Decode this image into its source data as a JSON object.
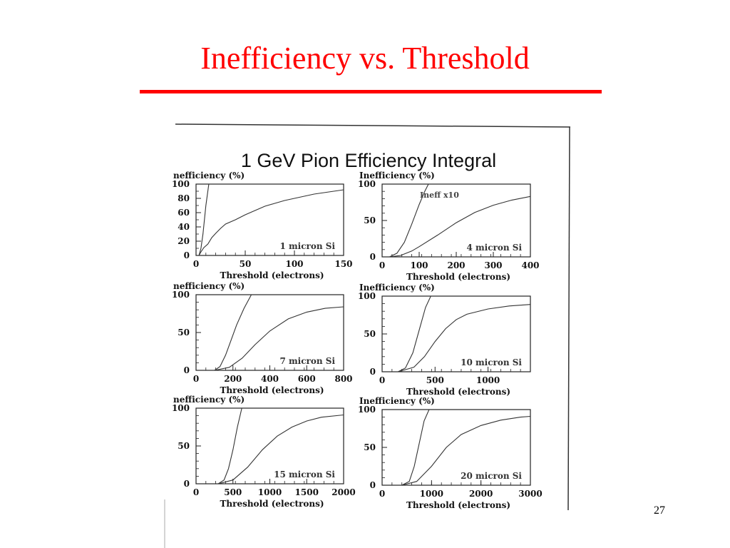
{
  "slide": {
    "title": "Inefficiency vs. Threshold",
    "page_number": "27",
    "accent_color": "#ff0000"
  },
  "figure": {
    "title": "1 GeV Pion Efficiency Integral"
  },
  "chart_data": [
    {
      "type": "line",
      "title": "",
      "ylabel": "nefficiency (%)",
      "xlabel": "Threshold (electrons)",
      "annotation": "1 micron Si",
      "xlim": [
        0,
        150
      ],
      "ylim": [
        0,
        100
      ],
      "xticks": [
        0,
        50,
        100,
        150
      ],
      "yticks": [
        0,
        20,
        40,
        60,
        80,
        100
      ],
      "series": [
        {
          "x": [
            3,
            5,
            7,
            10,
            13
          ],
          "y": [
            0,
            10,
            30,
            70,
            100
          ]
        },
        {
          "x": [
            3,
            5,
            8,
            12,
            16,
            20,
            25,
            30,
            40,
            50,
            60,
            70,
            80,
            90,
            100,
            110,
            120,
            130,
            140,
            150
          ],
          "y": [
            0,
            5,
            11,
            16,
            25,
            31,
            38,
            44,
            50,
            57,
            63,
            69,
            73,
            77,
            80,
            83,
            86,
            88,
            90,
            92
          ]
        }
      ]
    },
    {
      "type": "line",
      "title": "",
      "ylabel": "Inefficiency (%)",
      "xlabel": "Threshold (electrons)",
      "annotation": "4 micron Si",
      "inset_label": "Ineff x10",
      "xlim": [
        0,
        400
      ],
      "ylim": [
        0,
        100
      ],
      "xticks": [
        0,
        100,
        200,
        300,
        400
      ],
      "yticks": [
        0,
        50,
        100
      ],
      "series": [
        {
          "x": [
            20,
            40,
            60,
            80,
            100,
            115,
            125
          ],
          "y": [
            0,
            5,
            20,
            45,
            72,
            90,
            100
          ]
        },
        {
          "x": [
            20,
            50,
            80,
            100,
            150,
            200,
            250,
            300,
            350,
            400
          ],
          "y": [
            0,
            2,
            8,
            14,
            30,
            47,
            61,
            71,
            78,
            83
          ]
        }
      ]
    },
    {
      "type": "line",
      "title": "",
      "ylabel": "nefficiency (%)",
      "xlabel": "Threshold (electrons)",
      "annotation": "7 micron Si",
      "xlim": [
        0,
        800
      ],
      "ylim": [
        0,
        100
      ],
      "xticks": [
        0,
        200,
        400,
        600,
        800
      ],
      "yticks": [
        0,
        50,
        100
      ],
      "series": [
        {
          "x": [
            100,
            130,
            160,
            190,
            220,
            260,
            300
          ],
          "y": [
            0,
            5,
            20,
            40,
            60,
            82,
            100
          ]
        },
        {
          "x": [
            100,
            180,
            250,
            320,
            400,
            500,
            600,
            700,
            800
          ],
          "y": [
            0,
            4,
            16,
            34,
            52,
            68,
            77,
            82,
            84
          ]
        }
      ]
    },
    {
      "type": "line",
      "title": "",
      "ylabel": "Inefficiency (%)",
      "xlabel": "Threshold (electrons)",
      "annotation": "10 micron Si",
      "xlim": [
        0,
        1400
      ],
      "ylim": [
        0,
        100
      ],
      "xticks": [
        0,
        500,
        1000
      ],
      "yticks": [
        0,
        50,
        100
      ],
      "series": [
        {
          "x": [
            150,
            220,
            290,
            350,
            410,
            460
          ],
          "y": [
            0,
            5,
            25,
            55,
            85,
            100
          ]
        },
        {
          "x": [
            150,
            300,
            400,
            500,
            600,
            700,
            800,
            1000,
            1200,
            1400
          ],
          "y": [
            0,
            6,
            20,
            40,
            57,
            69,
            76,
            83,
            87,
            89
          ]
        }
      ]
    },
    {
      "type": "line",
      "title": "",
      "ylabel": "nefficiency (%)",
      "xlabel": "Threshold (electrons)",
      "annotation": "15 micron Si",
      "xlim": [
        0,
        2000
      ],
      "ylim": [
        0,
        100
      ],
      "xticks": [
        0,
        500,
        1000,
        1500,
        2000
      ],
      "yticks": [
        0,
        50,
        100
      ],
      "series": [
        {
          "x": [
            300,
            380,
            440,
            500,
            560,
            620
          ],
          "y": [
            0,
            5,
            20,
            45,
            75,
            100
          ]
        },
        {
          "x": [
            300,
            500,
            700,
            900,
            1100,
            1300,
            1500,
            1700,
            2000
          ],
          "y": [
            0,
            5,
            22,
            45,
            63,
            75,
            83,
            88,
            91
          ]
        }
      ]
    },
    {
      "type": "line",
      "title": "",
      "ylabel": "Inefficiency (%)",
      "xlabel": "Threshold (electrons)",
      "annotation": "20 micron Si",
      "xlim": [
        0,
        3000
      ],
      "ylim": [
        0,
        100
      ],
      "xticks": [
        0,
        1000,
        2000,
        3000
      ],
      "yticks": [
        0,
        50,
        100
      ],
      "series": [
        {
          "x": [
            400,
            550,
            650,
            750,
            850,
            950
          ],
          "y": [
            0,
            5,
            25,
            55,
            85,
            100
          ]
        },
        {
          "x": [
            400,
            700,
            1000,
            1300,
            1600,
            2000,
            2400,
            2800,
            3000
          ],
          "y": [
            0,
            5,
            25,
            50,
            67,
            79,
            86,
            90,
            91
          ]
        }
      ]
    }
  ]
}
